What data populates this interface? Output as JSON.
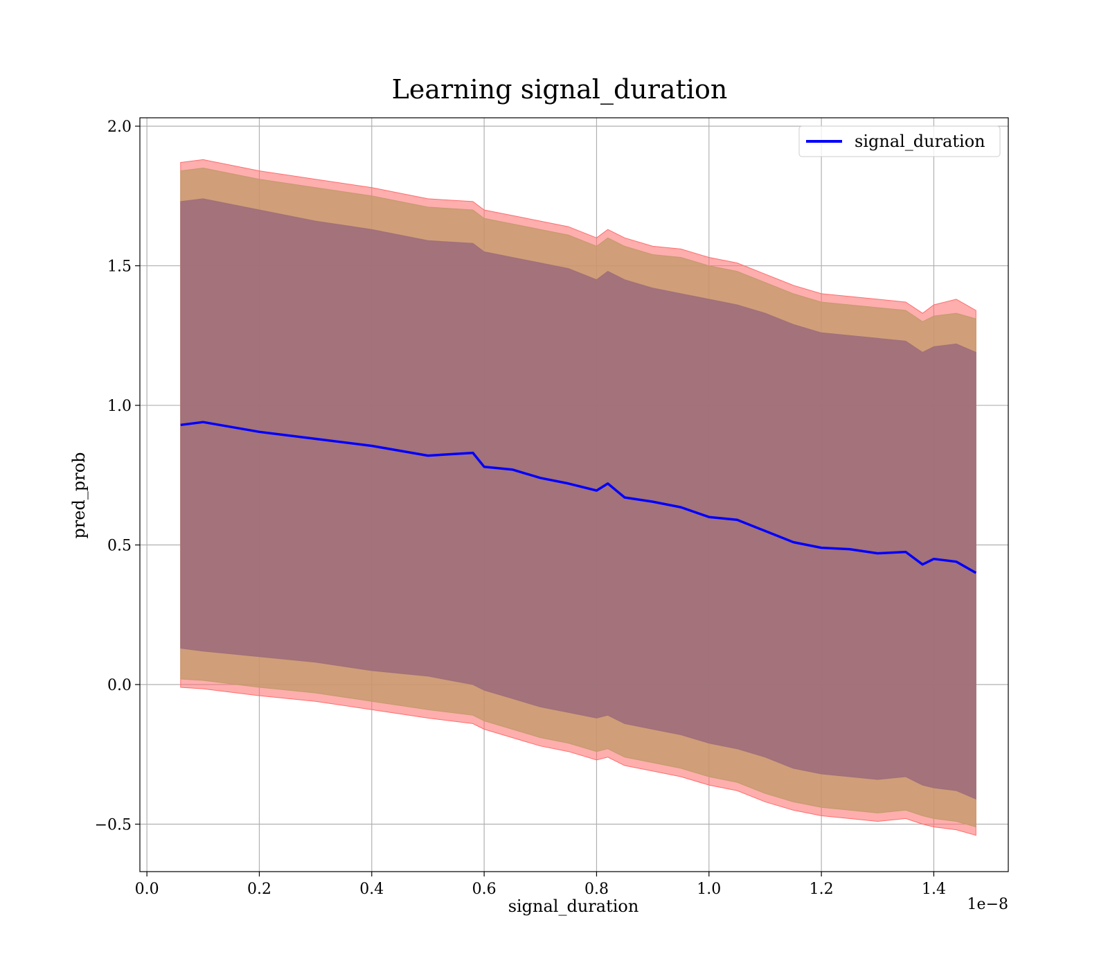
{
  "chart_data": {
    "type": "line",
    "title": "Learning signal_duration",
    "xlabel": "signal_duration",
    "ylabel": "pred_prob",
    "x_offset_label": "1e−8",
    "x_scale": 1e-08,
    "xlim": [
      -1.25e-10,
      1.5325e-08
    ],
    "ylim": [
      -0.67,
      2.03
    ],
    "xticks": [
      0.0,
      2e-09,
      4e-09,
      6e-09,
      8e-09,
      1e-08,
      1.2e-08,
      1.4e-08
    ],
    "xtick_labels": [
      "0.0",
      "0.2",
      "0.4",
      "0.6",
      "0.8",
      "1.0",
      "1.2",
      "1.4"
    ],
    "yticks": [
      -0.5,
      0.0,
      0.5,
      1.0,
      1.5,
      2.0
    ],
    "ytick_labels": [
      "−0.5",
      "0.0",
      "0.5",
      "1.0",
      "1.5",
      "2.0"
    ],
    "grid": true,
    "legend": {
      "position": "top-right",
      "entries": [
        "signal_duration"
      ]
    },
    "colors": {
      "line": "#0000ff",
      "band_outer": "#ff6b6b",
      "band_middle": "#c49a6c",
      "band_inner": "#a0707a"
    },
    "x": [
      6e-10,
      1e-09,
      2e-09,
      3e-09,
      4e-09,
      5e-09,
      5.8e-09,
      6e-09,
      6.5e-09,
      7e-09,
      7.5e-09,
      8e-09,
      8.2e-09,
      8.5e-09,
      9e-09,
      9.5e-09,
      1e-08,
      1.05e-08,
      1.1e-08,
      1.15e-08,
      1.2e-08,
      1.25e-08,
      1.3e-08,
      1.35e-08,
      1.38e-08,
      1.4e-08,
      1.44e-08,
      1.475e-08
    ],
    "series": [
      {
        "name": "signal_duration",
        "values": [
          0.93,
          0.94,
          0.905,
          0.88,
          0.855,
          0.82,
          0.83,
          0.78,
          0.77,
          0.74,
          0.72,
          0.695,
          0.72,
          0.67,
          0.655,
          0.635,
          0.6,
          0.59,
          0.55,
          0.51,
          0.49,
          0.485,
          0.47,
          0.475,
          0.43,
          0.45,
          0.44,
          0.4
        ]
      }
    ],
    "bands": [
      {
        "upper": [
          1.87,
          1.88,
          1.84,
          1.81,
          1.78,
          1.74,
          1.73,
          1.7,
          1.68,
          1.66,
          1.64,
          1.6,
          1.63,
          1.6,
          1.57,
          1.56,
          1.53,
          1.51,
          1.47,
          1.43,
          1.4,
          1.39,
          1.38,
          1.37,
          1.33,
          1.36,
          1.38,
          1.34
        ],
        "lower": [
          -0.01,
          -0.015,
          -0.04,
          -0.06,
          -0.09,
          -0.12,
          -0.14,
          -0.16,
          -0.19,
          -0.22,
          -0.24,
          -0.27,
          -0.26,
          -0.29,
          -0.31,
          -0.33,
          -0.36,
          -0.38,
          -0.42,
          -0.45,
          -0.47,
          -0.48,
          -0.49,
          -0.48,
          -0.5,
          -0.51,
          -0.52,
          -0.54
        ]
      },
      {
        "upper": [
          1.84,
          1.85,
          1.81,
          1.78,
          1.75,
          1.71,
          1.7,
          1.67,
          1.65,
          1.63,
          1.61,
          1.57,
          1.6,
          1.57,
          1.54,
          1.53,
          1.5,
          1.48,
          1.44,
          1.4,
          1.37,
          1.36,
          1.35,
          1.34,
          1.3,
          1.32,
          1.33,
          1.31
        ],
        "lower": [
          0.02,
          0.015,
          -0.01,
          -0.03,
          -0.06,
          -0.09,
          -0.11,
          -0.13,
          -0.16,
          -0.19,
          -0.21,
          -0.24,
          -0.23,
          -0.26,
          -0.28,
          -0.3,
          -0.33,
          -0.35,
          -0.39,
          -0.42,
          -0.44,
          -0.45,
          -0.46,
          -0.45,
          -0.47,
          -0.48,
          -0.49,
          -0.51
        ]
      },
      {
        "upper": [
          1.73,
          1.74,
          1.7,
          1.66,
          1.63,
          1.59,
          1.58,
          1.55,
          1.53,
          1.51,
          1.49,
          1.45,
          1.48,
          1.45,
          1.42,
          1.4,
          1.38,
          1.36,
          1.33,
          1.29,
          1.26,
          1.25,
          1.24,
          1.23,
          1.19,
          1.21,
          1.22,
          1.19
        ],
        "lower": [
          0.13,
          0.12,
          0.1,
          0.08,
          0.05,
          0.03,
          0.0,
          -0.02,
          -0.05,
          -0.08,
          -0.1,
          -0.12,
          -0.11,
          -0.14,
          -0.16,
          -0.18,
          -0.21,
          -0.23,
          -0.26,
          -0.3,
          -0.32,
          -0.33,
          -0.34,
          -0.33,
          -0.36,
          -0.37,
          -0.38,
          -0.41
        ]
      }
    ]
  }
}
